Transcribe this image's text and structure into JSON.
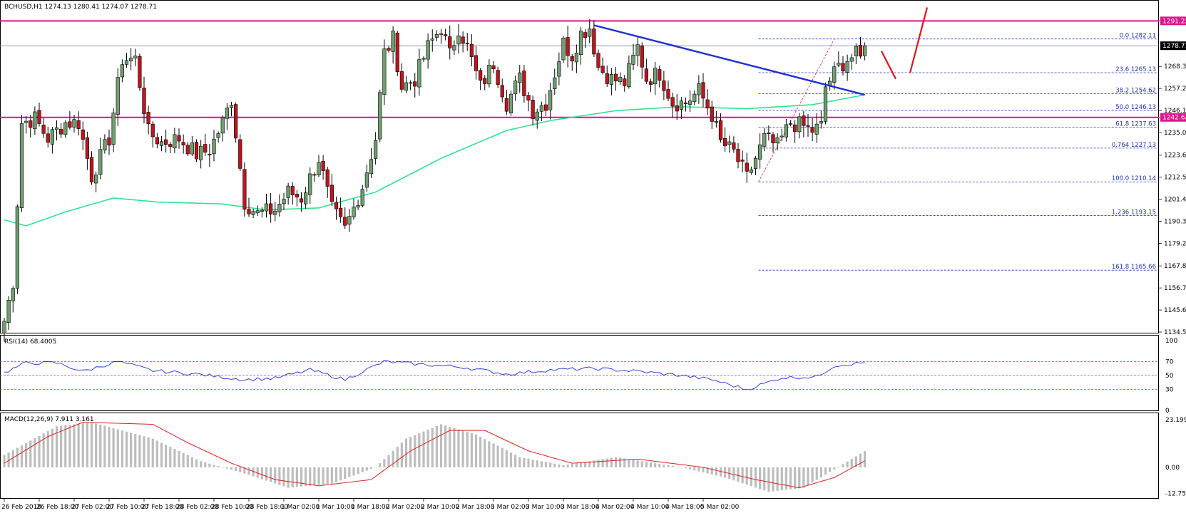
{
  "colors": {
    "bull": "#6f9f6f",
    "bear": "#c0141c",
    "ma": "#2ee58f",
    "trend": "#1f2fd8",
    "resistance": "#e0148c",
    "fib": "#2636c8",
    "rsi": "#1f2fd8",
    "macd_signal": "#e02020",
    "macd_hist": "#bdbdbd",
    "arrow": "#e0141c"
  },
  "main_panel": {
    "header": "BCHUSD,H1  1274.13 1280.41 1274.07 1278.71",
    "y_ticks": [
      "1268.30",
      "1257.20",
      "1246.10",
      "1235.00",
      "1223.60",
      "1212.50",
      "1201.40",
      "1190.30",
      "1179.20",
      "1167.80",
      "1156.70",
      "1145.60",
      "1134.50"
    ],
    "price_badges": [
      "1291.22",
      "1278.71",
      "1242.62"
    ],
    "fib_labels": [
      "0.0  1282.11",
      "23.6  1265.13",
      "38.2  1254.62",
      "50.0  1246.13",
      "61.8  1237.63",
      "0.764  1227.13",
      "100.0  1210.14",
      "1.236  1193.15",
      "161.8  1165.66"
    ]
  },
  "rsi_panel": {
    "header": "RSI(14) 68.4005",
    "y_ticks": [
      "100",
      "70",
      "50",
      "30",
      "0"
    ]
  },
  "macd_panel": {
    "header": "MACD(12,26,9) 7.911 3.161",
    "y_ticks": [
      "23.199",
      "0.00",
      "-12.758"
    ]
  },
  "x_axis": {
    "labels": [
      "26 Feb 2018",
      "26 Feb 18:00",
      "27 Feb 02:00",
      "27 Feb 10:00",
      "27 Feb 18:00",
      "28 Feb 02:00",
      "28 Feb 10:00",
      "28 Feb 18:00",
      "1 Mar 02:00",
      "1 Mar 10:00",
      "1 Mar 18:00",
      "2 Mar 02:00",
      "2 Mar 10:00",
      "2 Mar 18:00",
      "3 Mar 02:00",
      "3 Mar 10:00",
      "3 Mar 18:00",
      "4 Mar 02:00",
      "4 Mar 10:00",
      "4 Mar 18:00",
      "5 Mar 02:00"
    ]
  },
  "chart_data": {
    "type": "candlestick",
    "symbol": "BCHUSD",
    "timeframe": "H1",
    "ylim": [
      1134.5,
      1296
    ],
    "candle_step_hours": 1,
    "anchors": [
      {
        "i": 0,
        "c": 1140
      },
      {
        "i": 2,
        "c": 1160
      },
      {
        "i": 4,
        "c": 1240
      },
      {
        "i": 7,
        "c": 1242
      },
      {
        "i": 10,
        "c": 1232
      },
      {
        "i": 14,
        "c": 1240
      },
      {
        "i": 17,
        "c": 1240
      },
      {
        "i": 20,
        "c": 1213
      },
      {
        "i": 24,
        "c": 1232
      },
      {
        "i": 27,
        "c": 1272
      },
      {
        "i": 30,
        "c": 1272
      },
      {
        "i": 33,
        "c": 1235
      },
      {
        "i": 36,
        "c": 1230
      },
      {
        "i": 40,
        "c": 1232
      },
      {
        "i": 44,
        "c": 1224
      },
      {
        "i": 47,
        "c": 1226
      },
      {
        "i": 50,
        "c": 1240
      },
      {
        "i": 52,
        "c": 1252
      },
      {
        "i": 55,
        "c": 1200
      },
      {
        "i": 58,
        "c": 1194
      },
      {
        "i": 62,
        "c": 1196
      },
      {
        "i": 65,
        "c": 1205
      },
      {
        "i": 68,
        "c": 1202
      },
      {
        "i": 72,
        "c": 1222
      },
      {
        "i": 75,
        "c": 1196
      },
      {
        "i": 78,
        "c": 1186
      },
      {
        "i": 82,
        "c": 1208
      },
      {
        "i": 85,
        "c": 1232
      },
      {
        "i": 87,
        "c": 1275
      },
      {
        "i": 89,
        "c": 1282
      },
      {
        "i": 91,
        "c": 1258
      },
      {
        "i": 94,
        "c": 1262
      },
      {
        "i": 97,
        "c": 1278
      },
      {
        "i": 100,
        "c": 1288
      },
      {
        "i": 102,
        "c": 1274
      },
      {
        "i": 104,
        "c": 1288
      },
      {
        "i": 106,
        "c": 1278
      },
      {
        "i": 109,
        "c": 1258
      },
      {
        "i": 112,
        "c": 1270
      },
      {
        "i": 115,
        "c": 1250
      },
      {
        "i": 118,
        "c": 1262
      },
      {
        "i": 121,
        "c": 1246
      },
      {
        "i": 124,
        "c": 1250
      },
      {
        "i": 128,
        "c": 1280
      },
      {
        "i": 130,
        "c": 1274
      },
      {
        "i": 132,
        "c": 1285
      },
      {
        "i": 134,
        "c": 1288
      },
      {
        "i": 136,
        "c": 1268
      },
      {
        "i": 139,
        "c": 1262
      },
      {
        "i": 142,
        "c": 1260
      },
      {
        "i": 145,
        "c": 1278
      },
      {
        "i": 147,
        "c": 1262
      },
      {
        "i": 150,
        "c": 1265
      },
      {
        "i": 153,
        "c": 1250
      },
      {
        "i": 156,
        "c": 1250
      },
      {
        "i": 159,
        "c": 1256
      },
      {
        "i": 162,
        "c": 1244
      },
      {
        "i": 164,
        "c": 1230
      },
      {
        "i": 167,
        "c": 1225
      },
      {
        "i": 170,
        "c": 1212
      },
      {
        "i": 172,
        "c": 1222
      },
      {
        "i": 174,
        "c": 1232
      },
      {
        "i": 177,
        "c": 1228
      },
      {
        "i": 180,
        "c": 1240
      },
      {
        "i": 183,
        "c": 1238
      },
      {
        "i": 185,
        "c": 1236
      },
      {
        "i": 187,
        "c": 1238
      },
      {
        "i": 188,
        "c": 1258
      },
      {
        "i": 191,
        "c": 1268
      },
      {
        "i": 193,
        "c": 1272
      },
      {
        "i": 195,
        "c": 1274
      },
      {
        "i": 196,
        "c": 1272
      },
      {
        "i": 197,
        "c": 1278.71
      }
    ],
    "ma_anchors": [
      {
        "i": 0,
        "v": 1191
      },
      {
        "i": 5,
        "v": 1188
      },
      {
        "i": 14,
        "v": 1195
      },
      {
        "i": 25,
        "v": 1202
      },
      {
        "i": 35,
        "v": 1200
      },
      {
        "i": 50,
        "v": 1199
      },
      {
        "i": 60,
        "v": 1196
      },
      {
        "i": 72,
        "v": 1197
      },
      {
        "i": 85,
        "v": 1205
      },
      {
        "i": 100,
        "v": 1222
      },
      {
        "i": 115,
        "v": 1236
      },
      {
        "i": 125,
        "v": 1241
      },
      {
        "i": 140,
        "v": 1246
      },
      {
        "i": 155,
        "v": 1248
      },
      {
        "i": 170,
        "v": 1247
      },
      {
        "i": 185,
        "v": 1249
      },
      {
        "i": 197,
        "v": 1254
      }
    ],
    "horizontal_lines": [
      {
        "price": 1291.22,
        "role": "resistance"
      },
      {
        "price": 1242.62,
        "role": "support"
      },
      {
        "price": 1278.71,
        "role": "current"
      }
    ],
    "fibonacci": {
      "start_index": 173,
      "high": 1282.11,
      "low": 1210.14,
      "levels": [
        1282.11,
        1265.13,
        1254.62,
        1246.13,
        1237.63,
        1227.13,
        1210.14,
        1193.15,
        1165.66
      ]
    },
    "trendline": {
      "from": {
        "i": 136,
        "price": 1289
      },
      "to": {
        "i": 197,
        "price": 1254
      }
    },
    "rsi": {
      "levels": [
        70,
        50,
        30
      ],
      "anchors": [
        {
          "i": 0,
          "v": 54
        },
        {
          "i": 5,
          "v": 68
        },
        {
          "i": 12,
          "v": 68
        },
        {
          "i": 18,
          "v": 56
        },
        {
          "i": 26,
          "v": 70
        },
        {
          "i": 34,
          "v": 57
        },
        {
          "i": 44,
          "v": 52
        },
        {
          "i": 55,
          "v": 44
        },
        {
          "i": 62,
          "v": 46
        },
        {
          "i": 70,
          "v": 58
        },
        {
          "i": 78,
          "v": 44
        },
        {
          "i": 87,
          "v": 70
        },
        {
          "i": 95,
          "v": 66
        },
        {
          "i": 105,
          "v": 62
        },
        {
          "i": 115,
          "v": 52
        },
        {
          "i": 125,
          "v": 58
        },
        {
          "i": 135,
          "v": 60
        },
        {
          "i": 145,
          "v": 56
        },
        {
          "i": 155,
          "v": 50
        },
        {
          "i": 162,
          "v": 44
        },
        {
          "i": 170,
          "v": 30
        },
        {
          "i": 178,
          "v": 47
        },
        {
          "i": 186,
          "v": 48
        },
        {
          "i": 190,
          "v": 64
        },
        {
          "i": 197,
          "v": 68.4
        }
      ]
    },
    "macd": {
      "ylim": [
        -15,
        25
      ],
      "signal_anchors": [
        {
          "i": 0,
          "v": 2
        },
        {
          "i": 10,
          "v": 15
        },
        {
          "i": 18,
          "v": 22
        },
        {
          "i": 34,
          "v": 21
        },
        {
          "i": 42,
          "v": 12
        },
        {
          "i": 52,
          "v": 2
        },
        {
          "i": 62,
          "v": -6
        },
        {
          "i": 72,
          "v": -9
        },
        {
          "i": 84,
          "v": -6
        },
        {
          "i": 93,
          "v": 8
        },
        {
          "i": 102,
          "v": 18
        },
        {
          "i": 110,
          "v": 18
        },
        {
          "i": 120,
          "v": 8
        },
        {
          "i": 130,
          "v": 2
        },
        {
          "i": 145,
          "v": 4
        },
        {
          "i": 160,
          "v": 0
        },
        {
          "i": 172,
          "v": -6
        },
        {
          "i": 182,
          "v": -10
        },
        {
          "i": 190,
          "v": -5
        },
        {
          "i": 197,
          "v": 3.161
        }
      ],
      "hist_anchors": [
        {
          "i": 0,
          "v": 6
        },
        {
          "i": 12,
          "v": 20
        },
        {
          "i": 20,
          "v": 22
        },
        {
          "i": 34,
          "v": 14
        },
        {
          "i": 45,
          "v": 3
        },
        {
          "i": 55,
          "v": -3
        },
        {
          "i": 65,
          "v": -10
        },
        {
          "i": 75,
          "v": -8
        },
        {
          "i": 85,
          "v": 0
        },
        {
          "i": 92,
          "v": 14
        },
        {
          "i": 100,
          "v": 21
        },
        {
          "i": 108,
          "v": 16
        },
        {
          "i": 118,
          "v": 5
        },
        {
          "i": 128,
          "v": 1
        },
        {
          "i": 140,
          "v": 5
        },
        {
          "i": 155,
          "v": 0
        },
        {
          "i": 165,
          "v": -5
        },
        {
          "i": 175,
          "v": -12
        },
        {
          "i": 183,
          "v": -10
        },
        {
          "i": 190,
          "v": -1
        },
        {
          "i": 197,
          "v": 7.911
        }
      ]
    }
  }
}
